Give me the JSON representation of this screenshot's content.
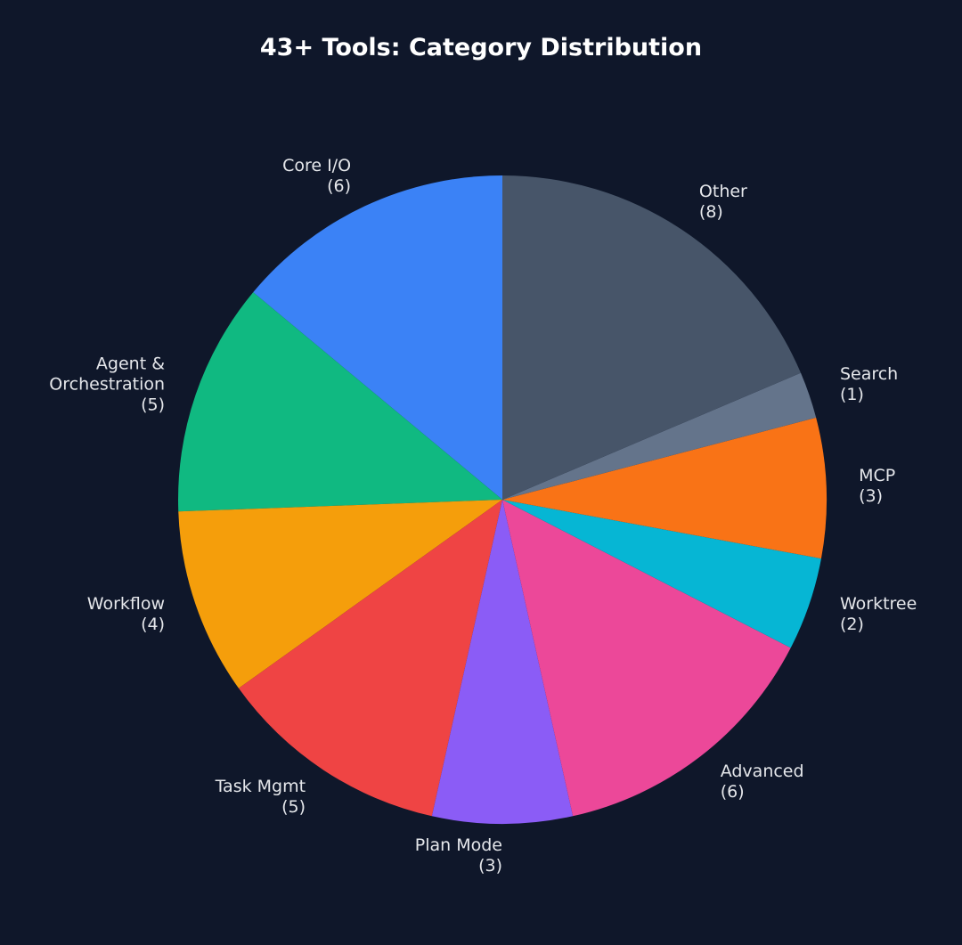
{
  "chart_data": {
    "type": "pie",
    "title": "43+ Tools: Category Distribution",
    "categories": [
      "Core I/O",
      "Agent &\nOrchestration",
      "Workflow",
      "Task Mgmt",
      "Plan Mode",
      "Advanced",
      "Worktree",
      "MCP",
      "Search",
      "Other"
    ],
    "values": [
      6,
      5,
      4,
      5,
      3,
      6,
      2,
      3,
      1,
      8
    ],
    "value_labels": [
      "(6)",
      "(5)",
      "(4)",
      "(5)",
      "(3)",
      "(6)",
      "(2)",
      "(3)",
      "(1)",
      "(8)"
    ],
    "colors": [
      "#3b82f6",
      "#10b981",
      "#f59e0b",
      "#ef4444",
      "#8b5cf6",
      "#ec4899",
      "#06b6d4",
      "#f97316",
      "#64748b",
      "#475569"
    ]
  }
}
